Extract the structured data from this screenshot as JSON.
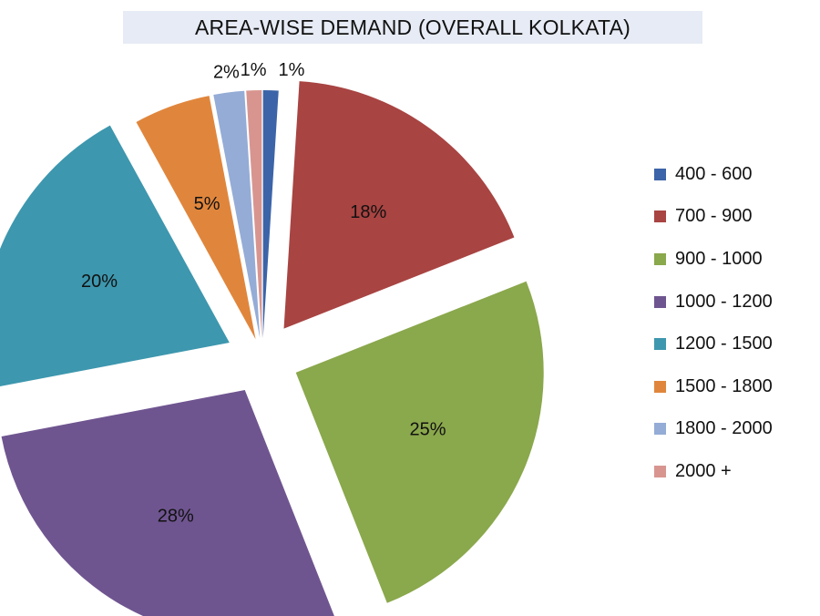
{
  "chart_data": {
    "type": "pie",
    "title": "AREA-WISE DEMAND (OVERALL KOLKATA)",
    "legend_position": "right",
    "exploded": true,
    "slices": [
      {
        "name": "400 - 600",
        "value": 1,
        "label": "1%",
        "color": "#3c64a8"
      },
      {
        "name": "700 - 900",
        "value": 18,
        "label": "18%",
        "color": "#a84442"
      },
      {
        "name": "900 - 1000",
        "value": 25,
        "label": "25%",
        "color": "#8aa84c"
      },
      {
        "name": "1000 - 1200",
        "value": 28,
        "label": "28%",
        "color": "#6f5590"
      },
      {
        "name": "1200 - 1500",
        "value": 20,
        "label": "20%",
        "color": "#3d97ae"
      },
      {
        "name": "1500 - 1800",
        "value": 5,
        "label": "5%",
        "color": "#e0863c"
      },
      {
        "name": "1800 - 2000",
        "value": 2,
        "label": "2%",
        "color": "#94acd6"
      },
      {
        "name": "2000 +",
        "value": 1,
        "label": "1%",
        "color": "#d89590"
      }
    ]
  }
}
